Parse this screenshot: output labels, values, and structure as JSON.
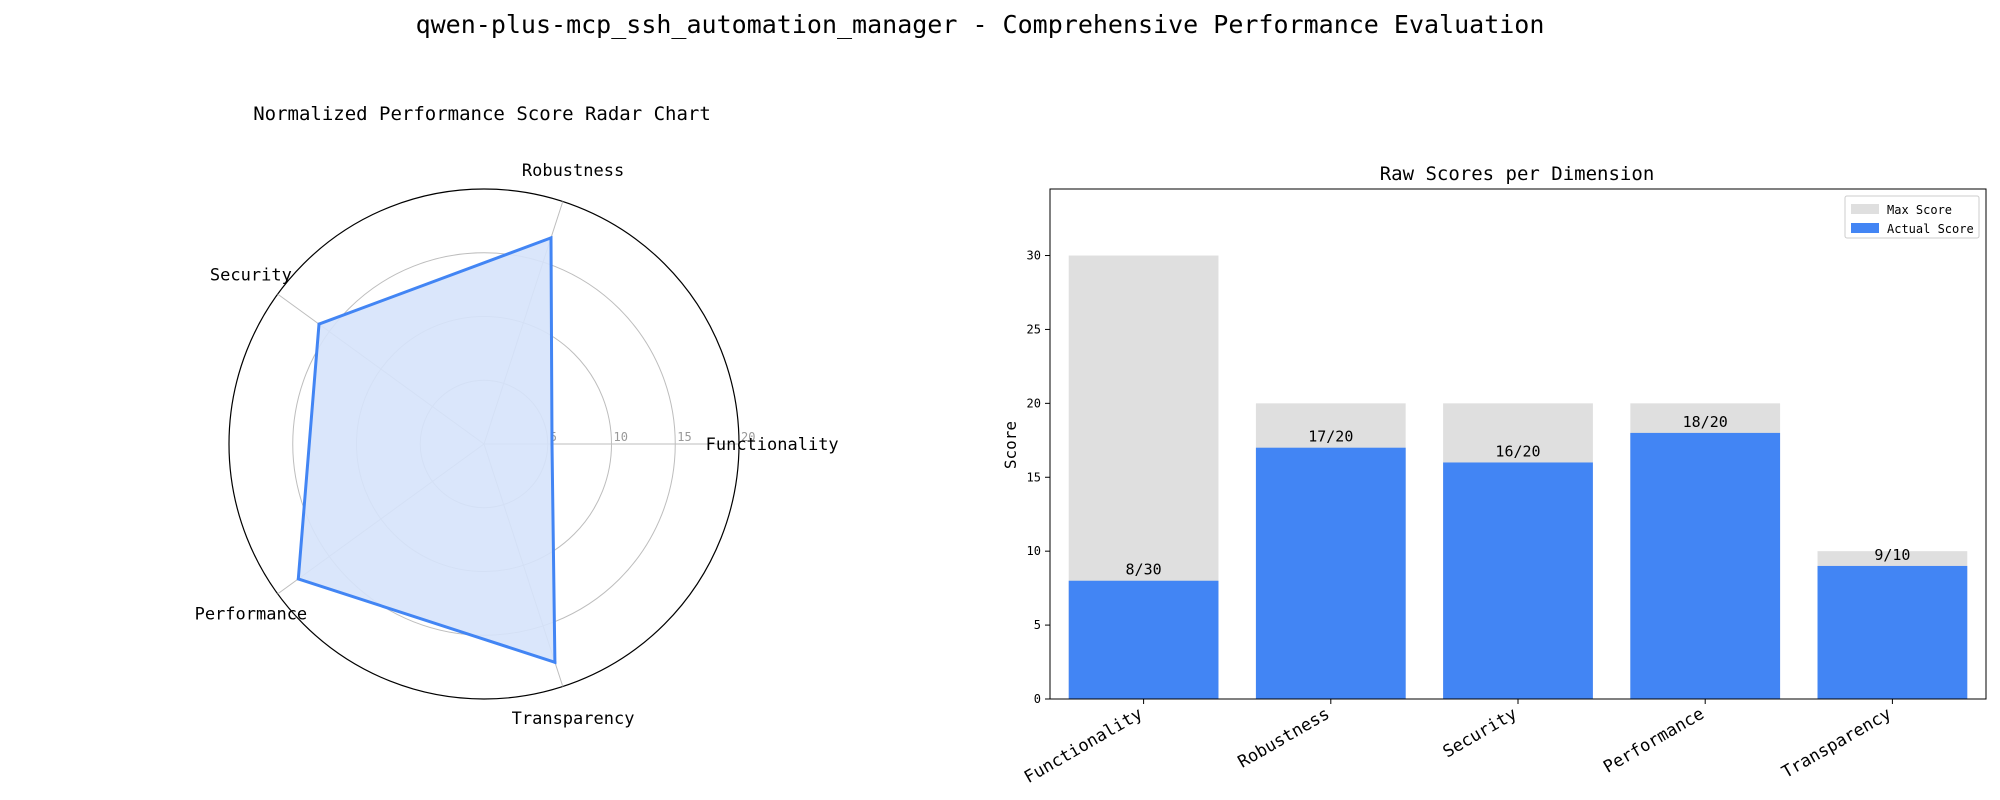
{
  "figure_title": "qwen-plus-mcp_ssh_automation_manager - Comprehensive Performance Evaluation",
  "colors": {
    "radar_line": "#4285f4",
    "radar_fill": "#d6e3fb",
    "grid": "#bdbdbd",
    "max_bar": "#dfdfdf",
    "actual_bar": "#4285f4"
  },
  "chart_data": [
    {
      "type": "radar",
      "title": "Normalized Performance Score Radar Chart",
      "categories": [
        "Functionality",
        "Robustness",
        "Security",
        "Performance",
        "Transparency"
      ],
      "values": [
        5.33,
        17,
        16,
        18,
        18
      ],
      "rlim": [
        0,
        20
      ],
      "rticks": [
        5,
        10,
        15,
        20
      ],
      "grid": true
    },
    {
      "type": "bar",
      "title": "Raw Scores per Dimension",
      "xlabel": "",
      "ylabel": "Score",
      "categories": [
        "Functionality",
        "Robustness",
        "Security",
        "Performance",
        "Transparency"
      ],
      "series": [
        {
          "name": "Max Score",
          "values": [
            30,
            20,
            20,
            20,
            10
          ]
        },
        {
          "name": "Actual Score",
          "values": [
            8,
            17,
            16,
            18,
            9
          ]
        }
      ],
      "bar_labels": [
        "8/30",
        "17/20",
        "16/20",
        "18/20",
        "9/10"
      ],
      "ylim": [
        0,
        34.5
      ],
      "yticks": [
        0,
        5,
        10,
        15,
        20,
        25,
        30
      ],
      "legend_position": "top-right",
      "grid": false
    }
  ]
}
